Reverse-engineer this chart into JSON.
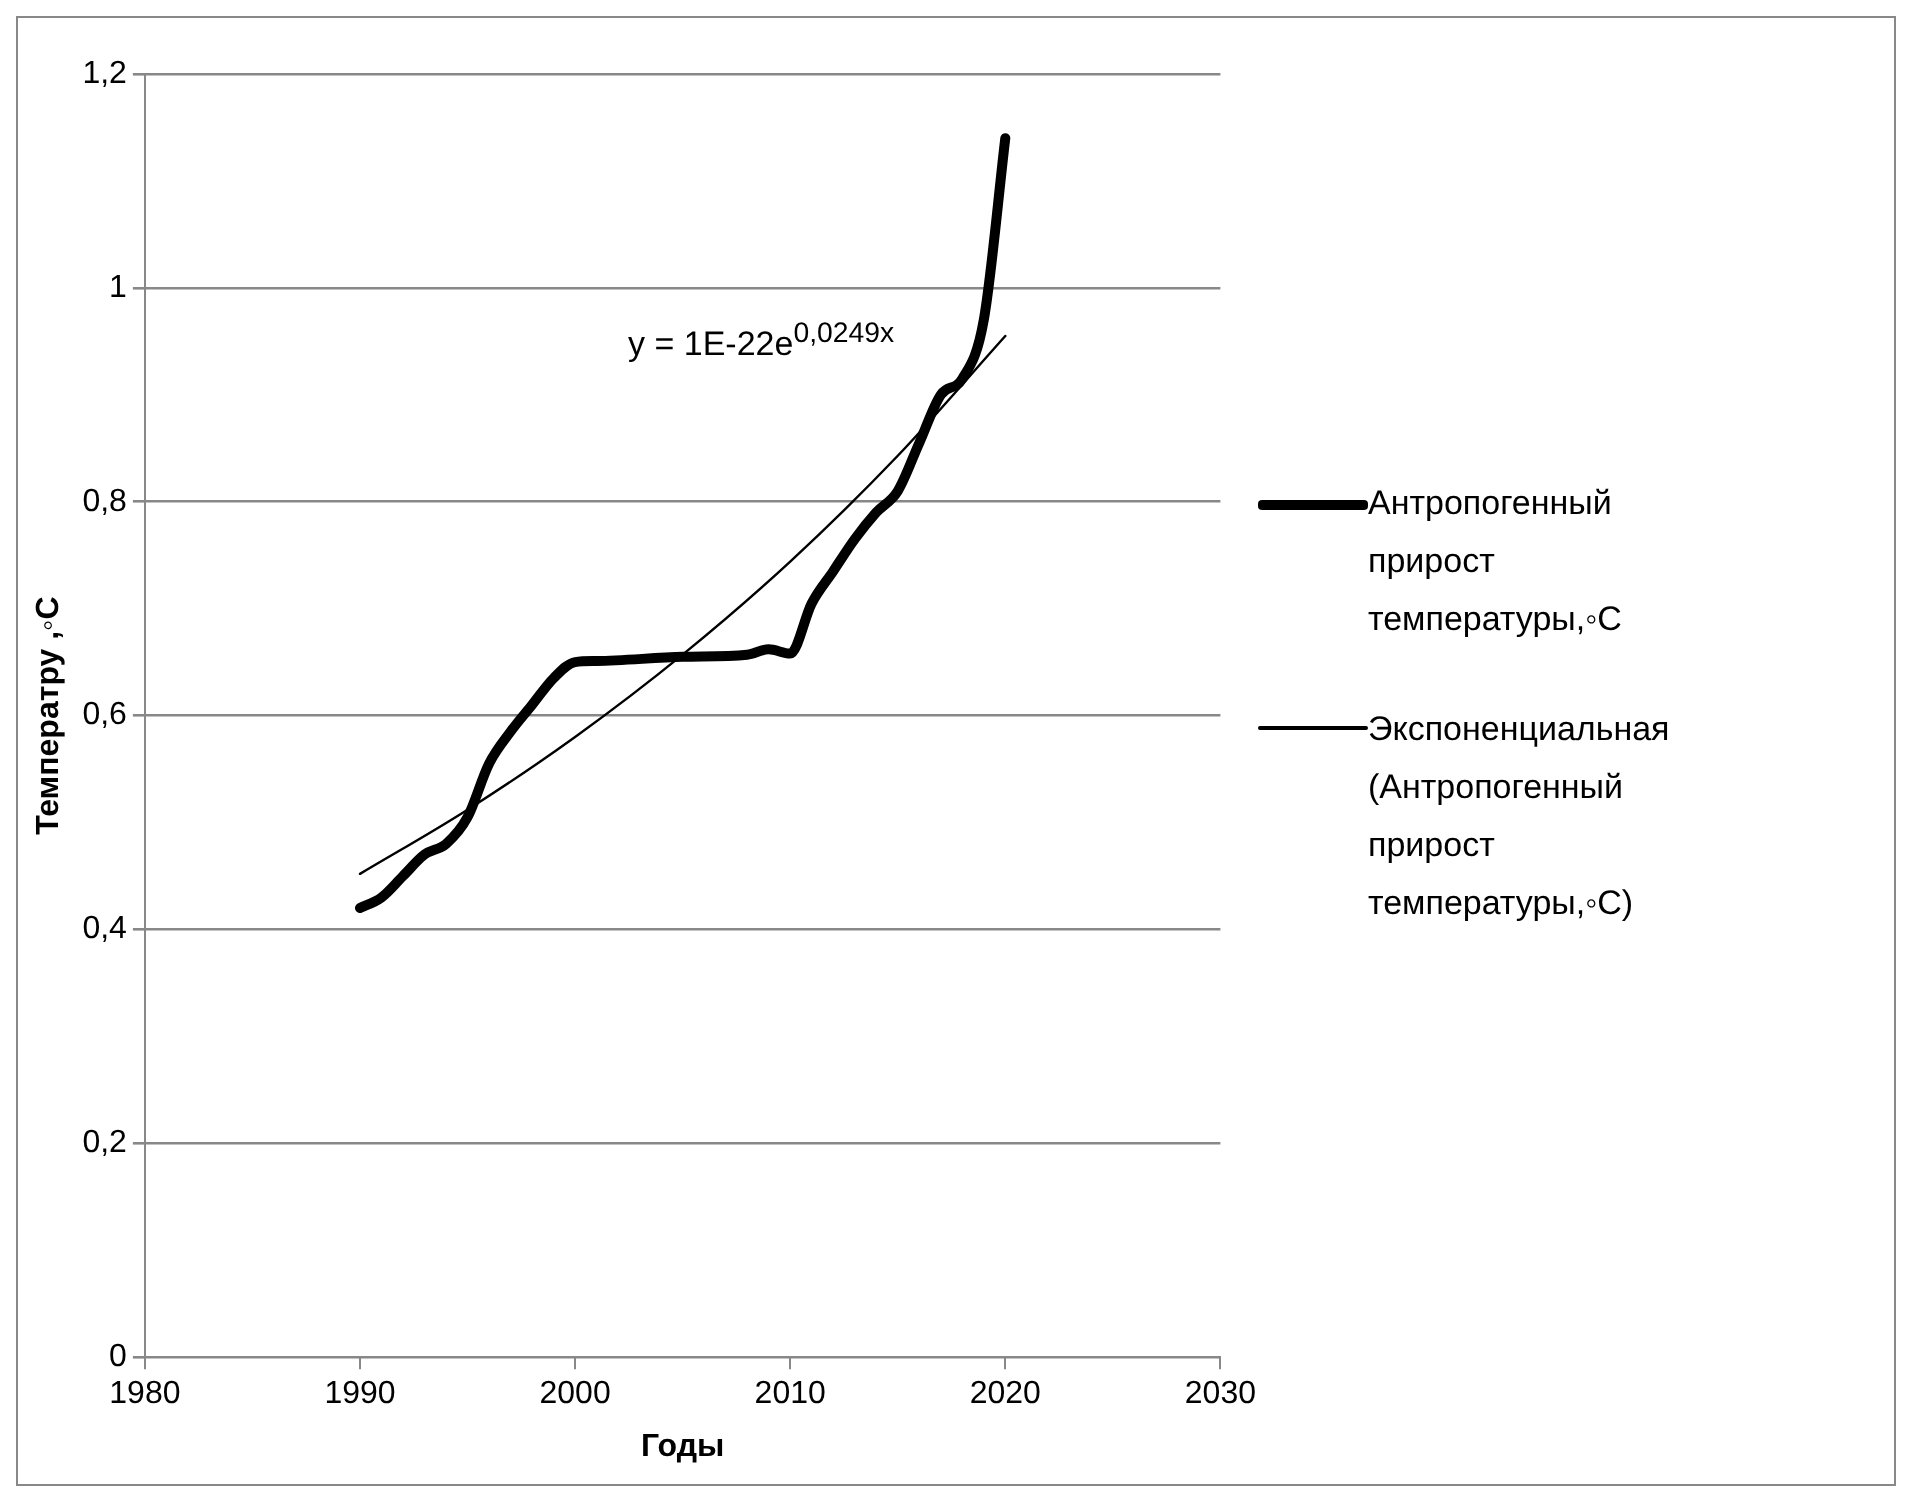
{
  "chart_data": {
    "type": "line",
    "xlabel": "Годы",
    "ylabel": "Температру ,◦C",
    "xlim": [
      1980,
      2030
    ],
    "xticks": [
      1980,
      1990,
      2000,
      2010,
      2020,
      2030
    ],
    "ylim": [
      0,
      1.2
    ],
    "yticks": [
      {
        "value": 0,
        "label": "0"
      },
      {
        "value": 0.2,
        "label": "0,2"
      },
      {
        "value": 0.4,
        "label": "0,4"
      },
      {
        "value": 0.6,
        "label": "0,6"
      },
      {
        "value": 0.8,
        "label": "0,8"
      },
      {
        "value": 1,
        "label": "1"
      },
      {
        "value": 1.2,
        "label": "1,2"
      }
    ],
    "grid": "y",
    "legend": "right",
    "marker": "none",
    "line_style": "solid",
    "annotations": [
      "y = 1E-22e$^{0,0249x}$"
    ],
    "series": [
      {
        "name": "Антропогенный прирост температуры,◦C",
        "color": "#000000",
        "x": [
          1990,
          1991,
          1992,
          1993,
          1994,
          1995,
          1996,
          1997,
          1998,
          1999,
          2000,
          2001,
          2005,
          2008,
          2009,
          2010,
          2011,
          2012,
          2013,
          2014,
          2015,
          2016,
          2017,
          2018,
          2019,
          2020
        ],
        "values": [
          0.42,
          0.43,
          0.45,
          0.47,
          0.48,
          0.505,
          0.555,
          0.585,
          0.61,
          0.635,
          0.65,
          0.651,
          0.655,
          0.657,
          0.662,
          0.658,
          0.705,
          0.735,
          0.765,
          0.79,
          0.81,
          0.855,
          0.9,
          0.915,
          0.97,
          1.14
        ]
      },
      {
        "name": "Экспоненциальная (Антропогенный прирост температуры,◦C)",
        "color": "#000000",
        "x": [
          1990,
          1995,
          2000,
          2005,
          2010,
          2015,
          2020
        ],
        "values": [
          0.452,
          0.512,
          0.58,
          0.657,
          0.744,
          0.843,
          0.955
        ]
      }
    ]
  }
}
